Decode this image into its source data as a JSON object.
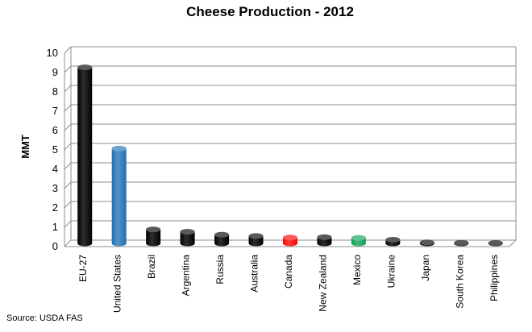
{
  "chart_data": {
    "type": "bar",
    "title": "Cheese Production - 2012",
    "ylabel": "MMT",
    "xlabel": "",
    "ylim": [
      0,
      10
    ],
    "yticks": [
      0,
      1,
      2,
      3,
      4,
      5,
      6,
      7,
      8,
      9,
      10
    ],
    "grid": true,
    "categories": [
      "EU-27",
      "United States",
      "Brazil",
      "Argentina",
      "Russia",
      "Australia",
      "Canada",
      "New Zealand",
      "Mexico",
      "Ukraine",
      "Japan",
      "South Korea",
      "Philippines"
    ],
    "values": [
      9.1,
      4.9,
      0.72,
      0.6,
      0.45,
      0.38,
      0.3,
      0.32,
      0.28,
      0.19,
      0.05,
      0.03,
      0.02
    ],
    "colors": [
      "#000000",
      "#1f6fb5",
      "#000000",
      "#000000",
      "#000000",
      "#000000",
      "#ff0000",
      "#000000",
      "#0e9d52",
      "#000000",
      "#000000",
      "#000000",
      "#000000"
    ]
  },
  "source": "Source:  USDA FAS"
}
